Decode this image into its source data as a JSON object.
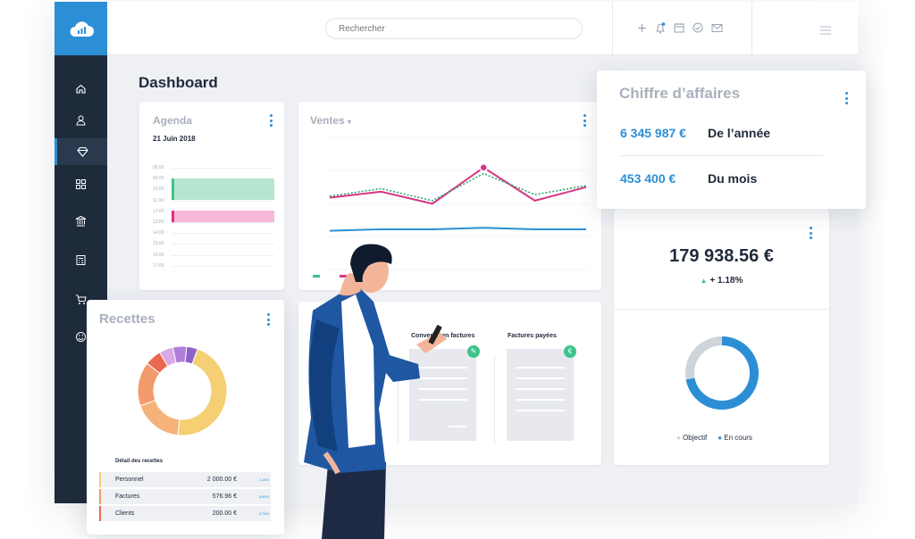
{
  "topbar": {
    "search_placeholder": "Rechercher",
    "icons": [
      "plus-icon",
      "bell-icon",
      "calendar-icon",
      "check-circle-icon",
      "mail-icon",
      "menu-icon"
    ]
  },
  "sidebar": {
    "items": [
      "home-icon",
      "user-icon",
      "diamond-icon",
      "grid-icon",
      "bank-icon",
      "calculator-icon",
      "cart-icon",
      "smiley-icon"
    ],
    "active": "diamond-icon"
  },
  "page": {
    "title": "Dashboard"
  },
  "agenda": {
    "title": "Agenda",
    "date": "21 Juin 2018",
    "hours": [
      "08:00",
      "09:00",
      "10:00",
      "11:00",
      "12:00",
      "13:00",
      "14:00",
      "15:00",
      "16:00",
      "17:00"
    ],
    "events": [
      {
        "color": "#b7e6d0",
        "accent": "#3cc48a"
      },
      {
        "color": "#f7b9d8",
        "accent": "#e0307f"
      }
    ]
  },
  "ventes": {
    "title": "Ventes",
    "chart_data": {
      "type": "line",
      "series": [
        {
          "color": "#d93585",
          "values": [
            40,
            44,
            36,
            60,
            38,
            47
          ]
        },
        {
          "color": "#2fa66f",
          "values": [
            41,
            46,
            38,
            56,
            42,
            48
          ]
        },
        {
          "color": "#2c8fd6",
          "values": [
            18,
            19,
            19,
            20,
            19,
            19
          ]
        }
      ],
      "legend_colors": [
        "#3cc48a",
        "#d93585",
        "#2c8fd6"
      ]
    }
  },
  "chiffre": {
    "title": "Chiffre d’affaires",
    "rows": [
      {
        "value": "6 345 987 €",
        "label": "De l’année"
      },
      {
        "value": "453 400 €",
        "label": "Du mois"
      }
    ]
  },
  "total": {
    "value": "179 938.56 €",
    "delta": "+ 1.18%",
    "legend": [
      {
        "label": "Objectif",
        "color": "#cfd3da"
      },
      {
        "label": "En cours",
        "color": "#2c8fd6"
      }
    ],
    "progress": 0.72
  },
  "invoices": {
    "col1": "Convertie en factures",
    "col2": "Factures payées"
  },
  "recettes": {
    "title": "Recettes",
    "chart_data": {
      "type": "pie",
      "slices": [
        {
          "value": 46,
          "color": "#f4cf73"
        },
        {
          "value": 18,
          "color": "#f5b27a"
        },
        {
          "value": 16,
          "color": "#f29a6b"
        },
        {
          "value": 6,
          "color": "#ea6a4f"
        },
        {
          "value": 5,
          "color": "#d9a8e6"
        },
        {
          "value": 5,
          "color": "#b07fd9"
        },
        {
          "value": 4,
          "color": "#8e63c7"
        }
      ]
    },
    "detail_title": "Détail des recettes",
    "rows": [
      {
        "label": "Personnel",
        "amount": "2 000.00 €",
        "pct": "2,18%",
        "color": "#f4cf73"
      },
      {
        "label": "Factures",
        "amount": "576.96 €",
        "pct": "8,60%",
        "color": "#f29a6b"
      },
      {
        "label": "Clients",
        "amount": "200.00 €",
        "pct": "4,76%",
        "color": "#ea6a4f"
      }
    ]
  }
}
